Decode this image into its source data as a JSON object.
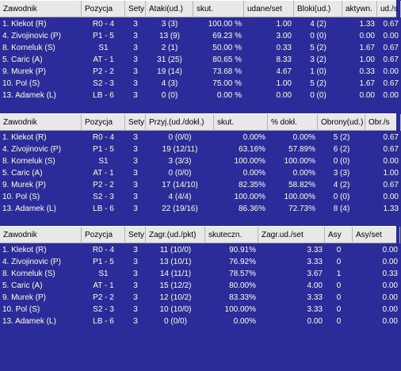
{
  "tables": [
    {
      "headers": [
        "Zawodnik",
        "Pozycja",
        "Sety",
        "Ataki(ud.)",
        "skut.",
        "udane/set",
        "Bloki(ud.)",
        "aktywn.",
        "ud./s"
      ],
      "rows": [
        [
          "1. Klekot (R)",
          "R0 - 4",
          "3",
          "3 (3)",
          "100.00 %",
          "1.00",
          "4 (2)",
          "1.33",
          "0.67"
        ],
        [
          "4. Zivojinovic (P)",
          "P1 - 5",
          "3",
          "13 (9)",
          "69.23 %",
          "3.00",
          "0 (0)",
          "0.00",
          "0.00"
        ],
        [
          "8. Korneluk (S)",
          "S1",
          "3",
          "2 (1)",
          "50.00 %",
          "0.33",
          "5 (2)",
          "1.67",
          "0.67"
        ],
        [
          "5. Caric (A)",
          "AT - 1",
          "3",
          "31 (25)",
          "80.65 %",
          "8.33",
          "3 (2)",
          "1.00",
          "0.67"
        ],
        [
          "9. Murek (P)",
          "P2 - 2",
          "3",
          "19 (14)",
          "73.68 %",
          "4.67",
          "1 (0)",
          "0.33",
          "0.00"
        ],
        [
          "10. Pol (S)",
          "S2 - 3",
          "3",
          "4 (3)",
          "75.00 %",
          "1.00",
          "5 (2)",
          "1.67",
          "0.67"
        ],
        [
          "13. Adamek (L)",
          "LB - 6",
          "3",
          "0 (0)",
          "0.00 %",
          "0.00",
          "0 (0)",
          "0.00",
          "0.00"
        ]
      ]
    },
    {
      "headers": [
        "Zawodnik",
        "Pozycja",
        "Sety",
        "Przyj.(ud./dokł.)",
        "skut.",
        "% dokł.",
        "Obrony(ud.)",
        "Obr./s"
      ],
      "rows": [
        [
          "1. Klekot (R)",
          "R0 - 4",
          "3",
          "0 (0/0)",
          "0.00%",
          "0.00%",
          "5 (2)",
          "0.67"
        ],
        [
          "4. Zivojinovic (P)",
          "P1 - 5",
          "3",
          "19 (12/11)",
          "63.16%",
          "57.89%",
          "6 (2)",
          "0.67"
        ],
        [
          "8. Korneluk (S)",
          "S1",
          "3",
          "3 (3/3)",
          "100.00%",
          "100.00%",
          "0 (0)",
          "0.00"
        ],
        [
          "5. Caric (A)",
          "AT - 1",
          "3",
          "0 (0/0)",
          "0.00%",
          "0.00%",
          "3 (3)",
          "1.00"
        ],
        [
          "9. Murek (P)",
          "P2 - 2",
          "3",
          "17 (14/10)",
          "82.35%",
          "58.82%",
          "4 (2)",
          "0.67"
        ],
        [
          "10. Pol (S)",
          "S2 - 3",
          "3",
          "4 (4/4)",
          "100.00%",
          "100.00%",
          "0 (0)",
          "0.00"
        ],
        [
          "13. Adamek (L)",
          "LB - 6",
          "3",
          "22 (19/16)",
          "86.36%",
          "72.73%",
          "8 (4)",
          "1.33"
        ]
      ]
    },
    {
      "headers": [
        "Zawodnik",
        "Pozycja",
        "Sety",
        "Zagr.(ud./pkt)",
        "skuteczn.",
        "Zagr.ud./set",
        "Asy",
        "Asy/set"
      ],
      "rows": [
        [
          "1. Klekot (R)",
          "R0 - 4",
          "3",
          "11 (10/0)",
          "90.91%",
          "3.33",
          "0",
          "0.00"
        ],
        [
          "4. Zivojinovic (P)",
          "P1 - 5",
          "3",
          "13 (10/1)",
          "76.92%",
          "3.33",
          "0",
          "0.00"
        ],
        [
          "8. Korneluk (S)",
          "S1",
          "3",
          "14 (11/1)",
          "78.57%",
          "3.67",
          "1",
          "0.33"
        ],
        [
          "5. Caric (A)",
          "AT - 1",
          "3",
          "15 (12/2)",
          "80.00%",
          "4.00",
          "0",
          "0.00"
        ],
        [
          "9. Murek (P)",
          "P2 - 2",
          "3",
          "12 (10/2)",
          "83.33%",
          "3.33",
          "0",
          "0.00"
        ],
        [
          "10. Pol (S)",
          "S2 - 3",
          "3",
          "10 (10/0)",
          "100.00%",
          "3.33",
          "0",
          "0.00"
        ],
        [
          "13. Adamek (L)",
          "LB - 6",
          "3",
          "0 (0/0)",
          "0.00%",
          "0.00",
          "0",
          "0.00"
        ]
      ]
    }
  ],
  "colors": {
    "background": "#2b2b9a",
    "header": "#e8e8e8",
    "text": "#ffffff"
  }
}
